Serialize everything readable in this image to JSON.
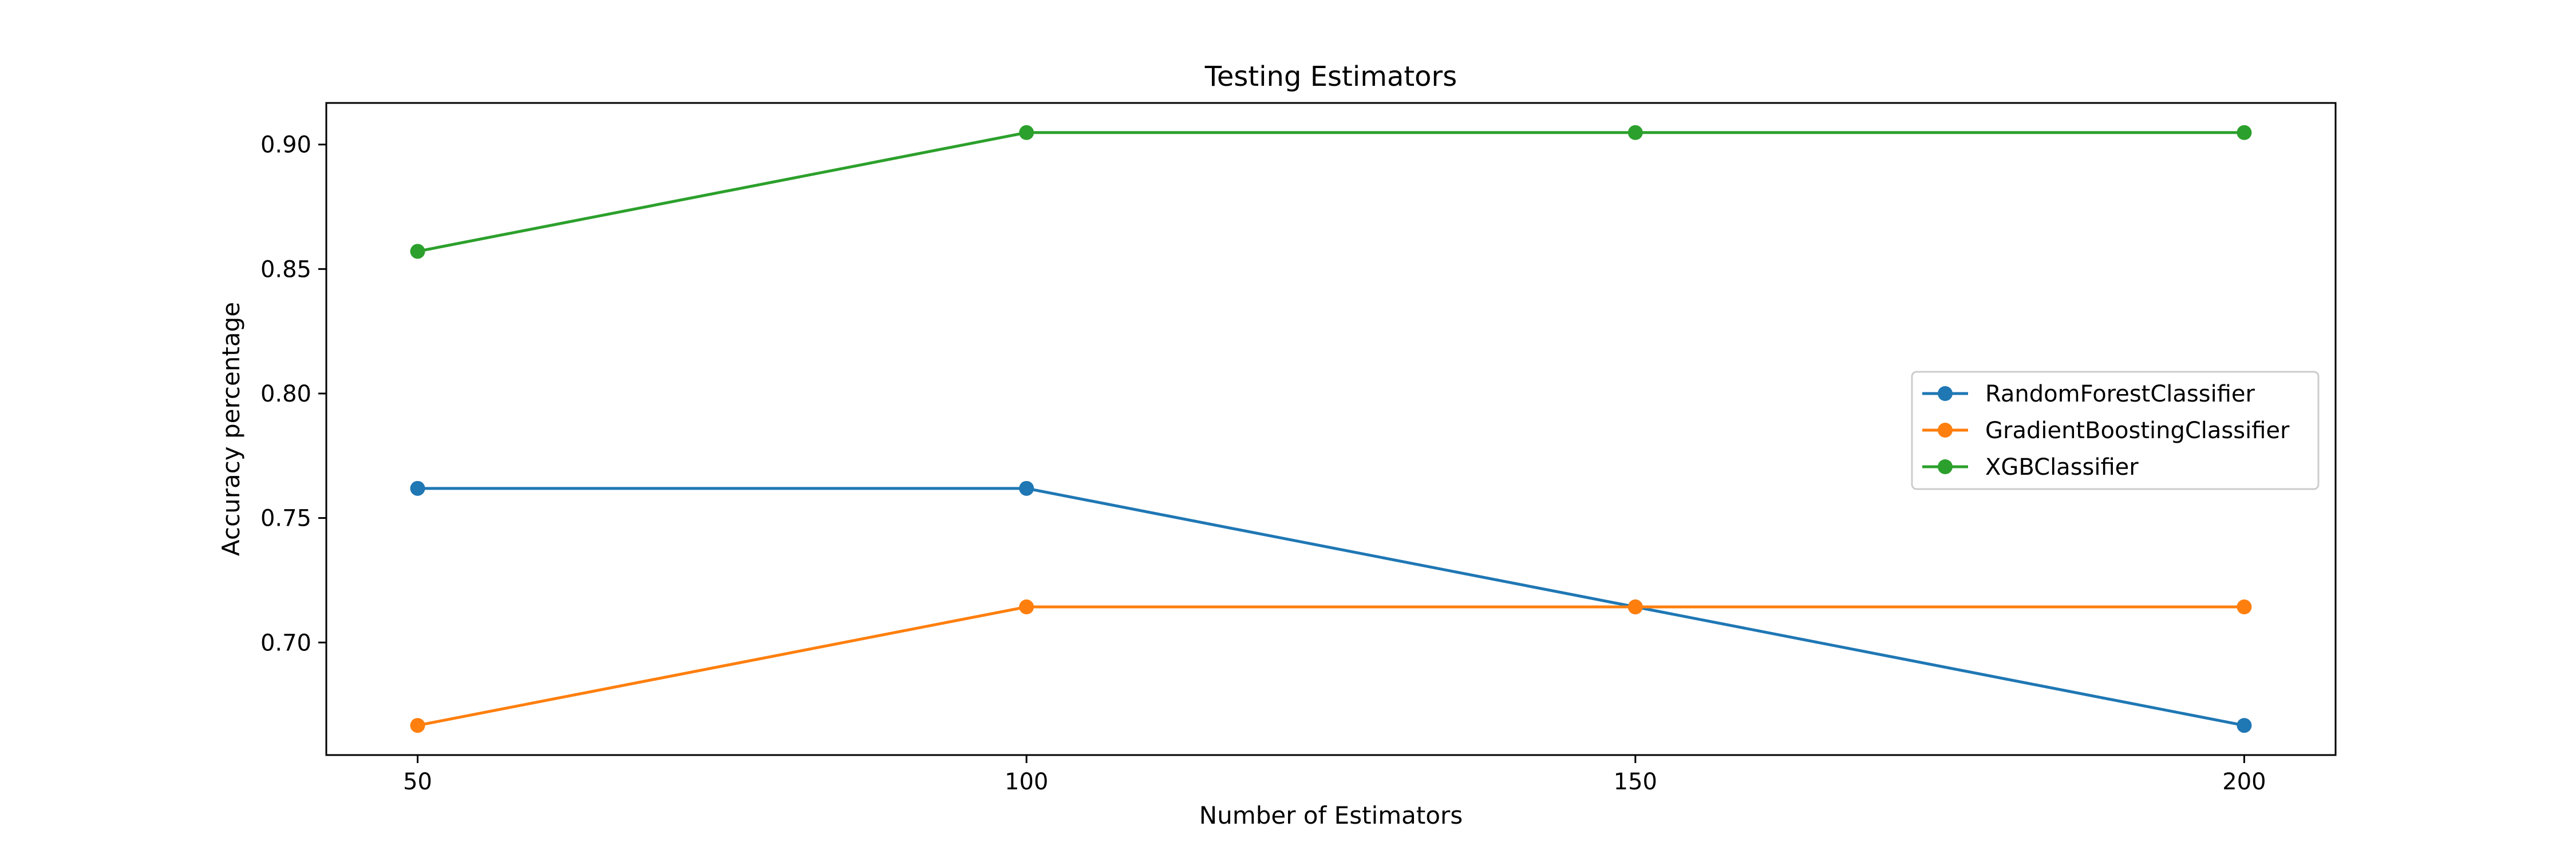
{
  "chart_data": {
    "type": "line",
    "title": "Testing Estimators",
    "xlabel": "Number of Estimators",
    "ylabel": "Accuracy percentage",
    "x": [
      50,
      100,
      150,
      200
    ],
    "xlim": [
      42.5,
      207.5
    ],
    "ylim": [
      0.6548,
      0.9167
    ],
    "xticks": [
      50,
      100,
      150,
      200
    ],
    "xtick_labels": [
      "50",
      "100",
      "150",
      "200"
    ],
    "yticks": [
      0.7,
      0.75,
      0.8,
      0.85,
      0.9
    ],
    "ytick_labels": [
      "0.70",
      "0.75",
      "0.80",
      "0.85",
      "0.90"
    ],
    "grid": false,
    "legend_position": "center-right",
    "series": [
      {
        "name": "RandomForestClassifier",
        "color": "#1f77b4",
        "values": [
          0.7619,
          0.7619,
          0.7143,
          0.6667
        ]
      },
      {
        "name": "GradientBoostingClassifier",
        "color": "#ff7f0e",
        "values": [
          0.6667,
          0.7143,
          0.7143,
          0.7143
        ]
      },
      {
        "name": "XGBClassifier",
        "color": "#2ca02c",
        "values": [
          0.8571,
          0.9048,
          0.9048,
          0.9048
        ]
      }
    ]
  }
}
